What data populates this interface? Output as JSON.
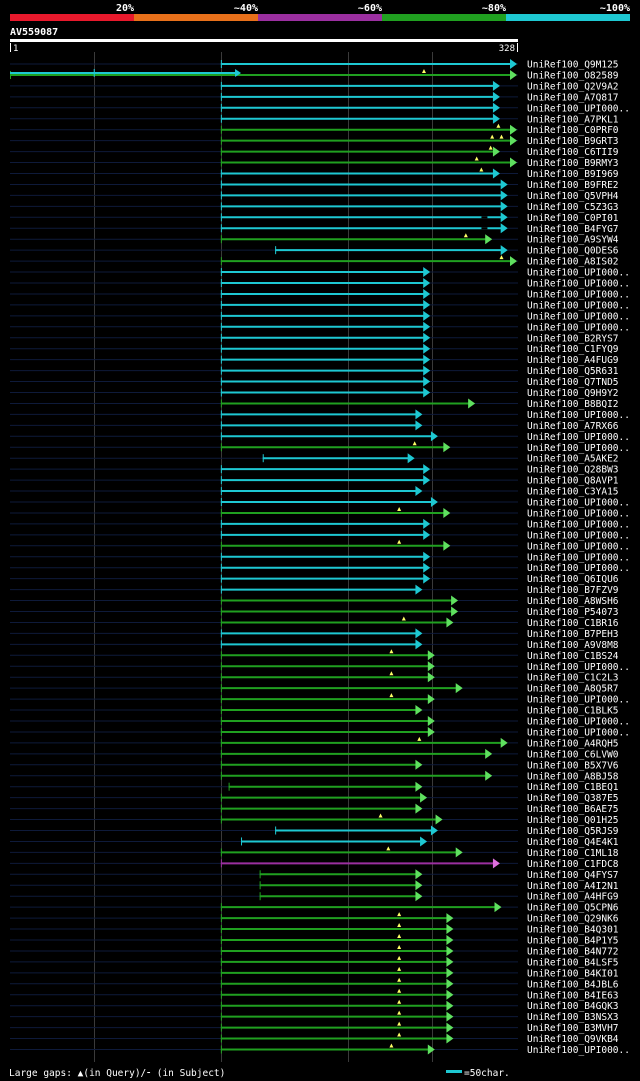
{
  "query": {
    "id": "AV559087",
    "start": "1",
    "end": "328",
    "length": 328
  },
  "identity_scale": [
    {
      "label": "20%",
      "color": "#e8192c"
    },
    {
      "label": "~40%",
      "color": "#e8701a"
    },
    {
      "label": "~60%",
      "color": "#9b2fa0"
    },
    {
      "label": "~80%",
      "color": "#20a020"
    },
    {
      "label": "~100%",
      "color": "#1ec8d2"
    }
  ],
  "gridlines_at": [
    55,
    137,
    219,
    273
  ],
  "footer": {
    "legend_text": "Large gaps: ▲(in Query)/⁃ (in Subject)",
    "scale_text": "=50char.",
    "scale_color": "#1ec8d2"
  },
  "hits": [
    {
      "name": "UniRef100_Q9M125",
      "start": 137,
      "end": 328,
      "color": "cyan"
    },
    {
      "name": "UniRef100_O82589",
      "start": 1,
      "end": 328,
      "color": "green",
      "gap_q": [
        268
      ],
      "segments": [
        {
          "s": 1,
          "e": 150,
          "color": "cyan",
          "tick": 55
        }
      ]
    },
    {
      "name": "UniRef100_Q2V9A2",
      "start": 137,
      "end": 317,
      "color": "cyan"
    },
    {
      "name": "UniRef100_A7Q817",
      "start": 137,
      "end": 317,
      "color": "cyan"
    },
    {
      "name": "UniRef100_UPI000..",
      "start": 137,
      "end": 317,
      "color": "cyan"
    },
    {
      "name": "UniRef100_A7PKL1",
      "start": 137,
      "end": 317,
      "color": "cyan"
    },
    {
      "name": "UniRef100_C0PRF0",
      "start": 137,
      "end": 328,
      "color": "green",
      "gap_q": [
        316
      ]
    },
    {
      "name": "UniRef100_B9GRT3",
      "start": 137,
      "end": 328,
      "color": "green",
      "gap_q": [
        312,
        318
      ]
    },
    {
      "name": "UniRef100_C6TII9",
      "start": 137,
      "end": 317,
      "color": "green",
      "gap_q": [
        311
      ]
    },
    {
      "name": "UniRef100_B9RMY3",
      "start": 137,
      "end": 328,
      "color": "green",
      "gap_q": [
        302
      ]
    },
    {
      "name": "UniRef100_B9I969",
      "start": 137,
      "end": 317,
      "color": "cyan",
      "gap_q": [
        305
      ]
    },
    {
      "name": "UniRef100_B9FRE2",
      "start": 137,
      "end": 322,
      "color": "cyan"
    },
    {
      "name": "UniRef100_Q5VPH4",
      "start": 137,
      "end": 322,
      "color": "cyan"
    },
    {
      "name": "UniRef100_C5Z3G3",
      "start": 137,
      "end": 322,
      "color": "cyan"
    },
    {
      "name": "UniRef100_C0PI01",
      "start": 137,
      "end": 322,
      "color": "cyan",
      "gap_s": [
        307
      ]
    },
    {
      "name": "UniRef100_B4FYG7",
      "start": 137,
      "end": 322,
      "color": "cyan",
      "gap_s": [
        307
      ]
    },
    {
      "name": "UniRef100_A9SYW4",
      "start": 137,
      "end": 312,
      "color": "green",
      "gap_q": [
        295
      ]
    },
    {
      "name": "UniRef100_Q0DES6",
      "start": 172,
      "end": 322,
      "color": "cyan"
    },
    {
      "name": "UniRef100_A8IS02",
      "start": 137,
      "end": 328,
      "color": "green",
      "gap_q": [
        318
      ]
    },
    {
      "name": "UniRef100_UPI000..",
      "start": 137,
      "end": 272,
      "color": "cyan"
    },
    {
      "name": "UniRef100_UPI000..",
      "start": 137,
      "end": 272,
      "color": "cyan"
    },
    {
      "name": "UniRef100_UPI000..",
      "start": 137,
      "end": 272,
      "color": "cyan"
    },
    {
      "name": "UniRef100_UPI000..",
      "start": 137,
      "end": 272,
      "color": "cyan"
    },
    {
      "name": "UniRef100_UPI000..",
      "start": 137,
      "end": 272,
      "color": "cyan"
    },
    {
      "name": "UniRef100_UPI000..",
      "start": 137,
      "end": 272,
      "color": "cyan"
    },
    {
      "name": "UniRef100_B2RYS7",
      "start": 137,
      "end": 272,
      "color": "cyan"
    },
    {
      "name": "UniRef100_C1FYQ9",
      "start": 137,
      "end": 272,
      "color": "cyan"
    },
    {
      "name": "UniRef100_A4FUG9",
      "start": 137,
      "end": 272,
      "color": "cyan"
    },
    {
      "name": "UniRef100_Q5R631",
      "start": 137,
      "end": 272,
      "color": "cyan"
    },
    {
      "name": "UniRef100_Q7TND5",
      "start": 137,
      "end": 272,
      "color": "cyan"
    },
    {
      "name": "UniRef100_Q9H9Y2",
      "start": 137,
      "end": 272,
      "color": "cyan"
    },
    {
      "name": "UniRef100_B8BQI2",
      "start": 137,
      "end": 301,
      "color": "green"
    },
    {
      "name": "UniRef100_UPI000..",
      "start": 137,
      "end": 267,
      "color": "cyan"
    },
    {
      "name": "UniRef100_A7RX66",
      "start": 137,
      "end": 267,
      "color": "cyan"
    },
    {
      "name": "UniRef100_UPI000..",
      "start": 137,
      "end": 277,
      "color": "cyan"
    },
    {
      "name": "UniRef100_UPI000..",
      "start": 137,
      "end": 285,
      "color": "green",
      "gap_q": [
        262
      ]
    },
    {
      "name": "UniRef100_A5AKE2",
      "start": 164,
      "end": 262,
      "color": "cyan"
    },
    {
      "name": "UniRef100_Q28BW3",
      "start": 137,
      "end": 272,
      "color": "cyan"
    },
    {
      "name": "UniRef100_Q8AVP1",
      "start": 137,
      "end": 272,
      "color": "cyan"
    },
    {
      "name": "UniRef100_C3YA15",
      "start": 137,
      "end": 267,
      "color": "cyan"
    },
    {
      "name": "UniRef100_UPI000..",
      "start": 137,
      "end": 277,
      "color": "cyan"
    },
    {
      "name": "UniRef100_UPI000..",
      "start": 137,
      "end": 285,
      "color": "green",
      "gap_q": [
        252
      ]
    },
    {
      "name": "UniRef100_UPI000..",
      "start": 137,
      "end": 272,
      "color": "cyan"
    },
    {
      "name": "UniRef100_UPI000..",
      "start": 137,
      "end": 272,
      "color": "cyan"
    },
    {
      "name": "UniRef100_UPI000..",
      "start": 137,
      "end": 285,
      "color": "green",
      "gap_q": [
        252
      ]
    },
    {
      "name": "UniRef100_UPI000..",
      "start": 137,
      "end": 272,
      "color": "cyan"
    },
    {
      "name": "UniRef100_UPI000..",
      "start": 137,
      "end": 272,
      "color": "cyan"
    },
    {
      "name": "UniRef100_Q6IQU6",
      "start": 137,
      "end": 272,
      "color": "cyan"
    },
    {
      "name": "UniRef100_B7FZV9",
      "start": 137,
      "end": 267,
      "color": "cyan"
    },
    {
      "name": "UniRef100_A8WSH6",
      "start": 137,
      "end": 290,
      "color": "green"
    },
    {
      "name": "UniRef100_P54073",
      "start": 137,
      "end": 290,
      "color": "green"
    },
    {
      "name": "UniRef100_C1BR16",
      "start": 137,
      "end": 287,
      "color": "green",
      "gap_q": [
        255
      ]
    },
    {
      "name": "UniRef100_B7PEH3",
      "start": 137,
      "end": 267,
      "color": "cyan"
    },
    {
      "name": "UniRef100_A9V8M8",
      "start": 137,
      "end": 267,
      "color": "cyan"
    },
    {
      "name": "UniRef100_C1BS24",
      "start": 137,
      "end": 275,
      "color": "green",
      "gap_q": [
        247
      ]
    },
    {
      "name": "UniRef100_UPI000..",
      "start": 137,
      "end": 275,
      "color": "green"
    },
    {
      "name": "UniRef100_C1C2L3",
      "start": 137,
      "end": 275,
      "color": "green",
      "gap_q": [
        247
      ]
    },
    {
      "name": "UniRef100_A8Q5R7",
      "start": 137,
      "end": 293,
      "color": "green"
    },
    {
      "name": "UniRef100_UPI000..",
      "start": 137,
      "end": 275,
      "color": "green",
      "gap_q": [
        247
      ]
    },
    {
      "name": "UniRef100_C1BLK5",
      "start": 137,
      "end": 267,
      "color": "green"
    },
    {
      "name": "UniRef100_UPI000..",
      "start": 137,
      "end": 275,
      "color": "green"
    },
    {
      "name": "UniRef100_UPI000..",
      "start": 137,
      "end": 275,
      "color": "green"
    },
    {
      "name": "UniRef100_A4RQH5",
      "start": 137,
      "end": 322,
      "color": "green",
      "gap_q": [
        265
      ]
    },
    {
      "name": "UniRef100_C6LVW0",
      "start": 137,
      "end": 312,
      "color": "green"
    },
    {
      "name": "UniRef100_B5X7V6",
      "start": 137,
      "end": 267,
      "color": "green"
    },
    {
      "name": "UniRef100_A8BJ58",
      "start": 137,
      "end": 312,
      "color": "green"
    },
    {
      "name": "UniRef100_C1BEQ1",
      "start": 142,
      "end": 267,
      "color": "green"
    },
    {
      "name": "UniRef100_Q387E5",
      "start": 137,
      "end": 270,
      "color": "green"
    },
    {
      "name": "UniRef100_B6AE75",
      "start": 137,
      "end": 267,
      "color": "green"
    },
    {
      "name": "UniRef100_Q01H25",
      "start": 137,
      "end": 280,
      "color": "green",
      "gap_q": [
        240
      ]
    },
    {
      "name": "UniRef100_Q5RJS9",
      "start": 172,
      "end": 277,
      "color": "cyan"
    },
    {
      "name": "UniRef100_Q4E4K1",
      "start": 150,
      "end": 270,
      "color": "cyan"
    },
    {
      "name": "UniRef100_C1ML18",
      "start": 137,
      "end": 293,
      "color": "green",
      "gap_q": [
        245
      ]
    },
    {
      "name": "UniRef100_C1FDC8",
      "start": 137,
      "end": 317,
      "color": "purple"
    },
    {
      "name": "UniRef100_Q4FYS7",
      "start": 162,
      "end": 267,
      "color": "green"
    },
    {
      "name": "UniRef100_A4I2N1",
      "start": 162,
      "end": 267,
      "color": "green"
    },
    {
      "name": "UniRef100_A4HFG9",
      "start": 162,
      "end": 267,
      "color": "green"
    },
    {
      "name": "UniRef100_Q5CPN6",
      "start": 137,
      "end": 318,
      "color": "green"
    },
    {
      "name": "UniRef100_Q29NK6",
      "start": 137,
      "end": 287,
      "color": "green",
      "gap_q": [
        252
      ]
    },
    {
      "name": "UniRef100_B4Q301",
      "start": 137,
      "end": 287,
      "color": "green",
      "gap_q": [
        252
      ]
    },
    {
      "name": "UniRef100_B4P1Y5",
      "start": 137,
      "end": 287,
      "color": "green",
      "gap_q": [
        252
      ]
    },
    {
      "name": "UniRef100_B4N772",
      "start": 137,
      "end": 287,
      "color": "green",
      "gap_q": [
        252
      ]
    },
    {
      "name": "UniRef100_B4LSF5",
      "start": 137,
      "end": 287,
      "color": "green",
      "gap_q": [
        252
      ]
    },
    {
      "name": "UniRef100_B4KI01",
      "start": 137,
      "end": 287,
      "color": "green",
      "gap_q": [
        252
      ]
    },
    {
      "name": "UniRef100_B4JBL6",
      "start": 137,
      "end": 287,
      "color": "green",
      "gap_q": [
        252
      ]
    },
    {
      "name": "UniRef100_B4IE63",
      "start": 137,
      "end": 287,
      "color": "green",
      "gap_q": [
        252
      ]
    },
    {
      "name": "UniRef100_B4GQK3",
      "start": 137,
      "end": 287,
      "color": "green",
      "gap_q": [
        252
      ]
    },
    {
      "name": "UniRef100_B3NSX3",
      "start": 137,
      "end": 287,
      "color": "green",
      "gap_q": [
        252
      ]
    },
    {
      "name": "UniRef100_B3MVH7",
      "start": 137,
      "end": 287,
      "color": "green",
      "gap_q": [
        252
      ]
    },
    {
      "name": "UniRef100_Q9VKB4",
      "start": 137,
      "end": 287,
      "color": "green",
      "gap_q": [
        252
      ]
    },
    {
      "name": "UniRef100_UPI000..",
      "start": 137,
      "end": 275,
      "color": "green",
      "gap_q": [
        247
      ]
    }
  ]
}
